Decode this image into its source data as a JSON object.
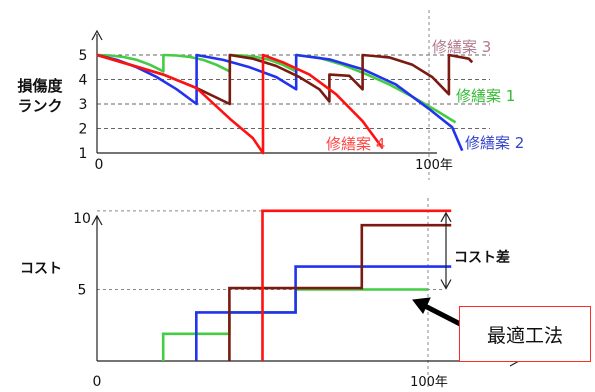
{
  "chart_data": [
    {
      "type": "line",
      "ylabel": "損傷度\nランク",
      "x_ticks": [
        "0",
        "100年"
      ],
      "y_ticks": [
        "1",
        "2",
        "3",
        "4",
        "5"
      ],
      "xlim": [
        0,
        113
      ],
      "ylim": [
        1,
        5.6
      ],
      "reference_lines_y": [
        2,
        3,
        4,
        5
      ],
      "reference_line_x": 100,
      "series": [
        {
          "name": "修繕案 1",
          "color": "#44cc44",
          "points": [
            [
              0,
              5
            ],
            [
              4,
              4.98
            ],
            [
              8,
              4.92
            ],
            [
              12,
              4.8
            ],
            [
              16,
              4.6
            ],
            [
              20,
              4.33
            ],
            [
              20,
              5
            ],
            [
              24,
              4.98
            ],
            [
              28,
              4.92
            ],
            [
              32,
              4.8
            ],
            [
              36,
              4.6
            ],
            [
              40,
              4.33
            ],
            [
              40,
              5
            ],
            [
              44,
              4.98
            ],
            [
              48,
              4.92
            ],
            [
              52,
              4.8
            ],
            [
              56,
              4.6
            ],
            [
              60,
              4.33
            ],
            [
              60,
              5
            ],
            [
              67,
              4.88
            ],
            [
              74,
              4.6
            ],
            [
              81,
              4.22
            ],
            [
              88,
              3.8
            ],
            [
              95,
              3.3
            ],
            [
              102,
              2.75
            ],
            [
              108,
              2.25
            ]
          ]
        },
        {
          "name": "修繕案 2",
          "color": "#2233ee",
          "points": [
            [
              0,
              5
            ],
            [
              6,
              4.8
            ],
            [
              12,
              4.5
            ],
            [
              18,
              4.1
            ],
            [
              24,
              3.6
            ],
            [
              30,
              3
            ],
            [
              30,
              5
            ],
            [
              38,
              4.8
            ],
            [
              46,
              4.5
            ],
            [
              54,
              4.1
            ],
            [
              60,
              3.6
            ],
            [
              60,
              5
            ],
            [
              70,
              4.82
            ],
            [
              80,
              4.42
            ],
            [
              90,
              3.8
            ],
            [
              100,
              2.8
            ],
            [
              107,
              2.05
            ],
            [
              110,
              1.1
            ]
          ]
        },
        {
          "name": "修繕案 3",
          "color": "#7a1a10",
          "points": [
            [
              0,
              5
            ],
            [
              10,
              4.6
            ],
            [
              20,
              4.2
            ],
            [
              30,
              3.65
            ],
            [
              40,
              3
            ],
            [
              40,
              5
            ],
            [
              47,
              4.85
            ],
            [
              54,
              4.55
            ],
            [
              61,
              4.1
            ],
            [
              67,
              3.6
            ],
            [
              70,
              3.1
            ],
            [
              70,
              4.2
            ],
            [
              76,
              4.15
            ],
            [
              80,
              3.6
            ],
            [
              80,
              5
            ],
            [
              88,
              4.9
            ],
            [
              95,
              4.6
            ],
            [
              101,
              4.1
            ],
            [
              106,
              3.4
            ],
            [
              106,
              5
            ],
            [
              112,
              4.85
            ],
            [
              113,
              4.7
            ]
          ]
        },
        {
          "name": "修繕案 4",
          "color": "#ff1111",
          "points": [
            [
              0,
              5
            ],
            [
              10,
              4.6
            ],
            [
              20,
              4.2
            ],
            [
              30,
              3.65
            ],
            [
              40,
              2.4
            ],
            [
              47,
              1.6
            ],
            [
              50,
              1
            ],
            [
              50,
              5
            ],
            [
              56,
              4.7
            ],
            [
              64,
              4.2
            ],
            [
              72,
              3.4
            ],
            [
              80,
              2.3
            ],
            [
              86,
              1.2
            ]
          ]
        }
      ],
      "labels": [
        "修繕案 3",
        "修繕案 1",
        "修繕案 2",
        "修繕案 4"
      ]
    },
    {
      "type": "line",
      "ylabel": "コスト",
      "x_ticks": [
        "0",
        "100年"
      ],
      "y_ticks": [
        "5",
        "10"
      ],
      "xlim": [
        0,
        113
      ],
      "ylim": [
        0,
        11
      ],
      "reference_lines_y": [
        5,
        10.5
      ],
      "reference_line_x": 100,
      "series": [
        {
          "name": "修繕案 1",
          "color": "#44cc44",
          "points": [
            [
              20,
              0
            ],
            [
              20,
              1.9
            ],
            [
              40,
              1.9
            ],
            [
              40,
              3.4
            ],
            [
              60,
              3.4
            ],
            [
              60,
              5
            ],
            [
              100,
              5
            ]
          ]
        },
        {
          "name": "修繕案 2",
          "color": "#2233ee",
          "points": [
            [
              30,
              0
            ],
            [
              30,
              3.4
            ],
            [
              60,
              3.4
            ],
            [
              60,
              6.6
            ],
            [
              107,
              6.6
            ]
          ]
        },
        {
          "name": "修繕案 3",
          "color": "#7a1a10",
          "points": [
            [
              40,
              0
            ],
            [
              40,
              5.1
            ],
            [
              80,
              5.1
            ],
            [
              80,
              9.5
            ],
            [
              107,
              9.5
            ]
          ]
        },
        {
          "name": "修繕案 4",
          "color": "#ff1111",
          "points": [
            [
              50,
              0
            ],
            [
              50,
              10.5
            ],
            [
              107,
              10.5
            ]
          ]
        }
      ],
      "annotations": {
        "cost_diff": "コスト差",
        "best": "最適工法"
      }
    }
  ]
}
